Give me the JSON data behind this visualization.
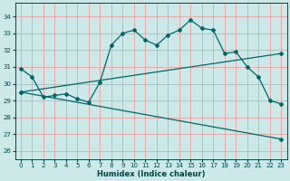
{
  "xlabel": "Humidex (Indice chaleur)",
  "background_color": "#cce8e8",
  "grid_color_v": "#e8a0a0",
  "grid_color_h": "#e8a0a0",
  "line_color": "#006666",
  "xlim": [
    -0.5,
    23.5
  ],
  "ylim": [
    25.5,
    34.8
  ],
  "yticks": [
    26,
    27,
    28,
    29,
    30,
    31,
    32,
    33,
    34
  ],
  "xticks": [
    0,
    1,
    2,
    3,
    4,
    5,
    6,
    7,
    8,
    9,
    10,
    11,
    12,
    13,
    14,
    15,
    16,
    17,
    18,
    19,
    20,
    21,
    22,
    23
  ],
  "series": [
    {
      "x": [
        0,
        1,
        2,
        3,
        4,
        5,
        6,
        7,
        8,
        9,
        10,
        11,
        12,
        13,
        14,
        15,
        16,
        17,
        18,
        19,
        20,
        21,
        22,
        23
      ],
      "y": [
        30.9,
        30.4,
        29.2,
        29.3,
        29.4,
        29.1,
        28.9,
        30.1,
        32.3,
        33.0,
        33.2,
        32.6,
        32.3,
        32.9,
        33.2,
        33.8,
        33.3,
        33.2,
        31.8,
        31.9,
        31.0,
        30.4,
        29.0,
        28.8
      ]
    },
    {
      "x": [
        0,
        23
      ],
      "y": [
        29.5,
        31.8
      ]
    },
    {
      "x": [
        0,
        23
      ],
      "y": [
        29.5,
        26.7
      ]
    }
  ]
}
